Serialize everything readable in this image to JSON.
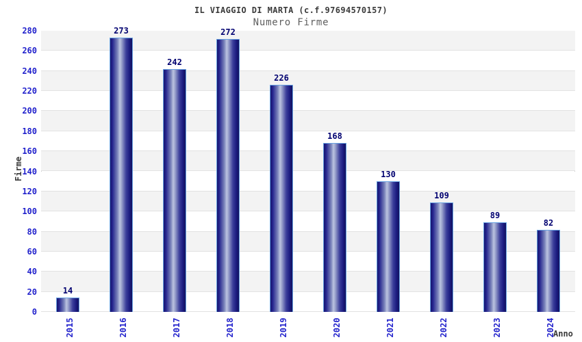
{
  "header": {
    "title": "IL VIAGGIO DI MARTA (c.f.97694570157)",
    "subtitle": "Numero Firme"
  },
  "chart_data": {
    "type": "bar",
    "title": "IL VIAGGIO DI MARTA (c.f.97694570157)",
    "subtitle": "Numero Firme",
    "categories": [
      "2015",
      "2016",
      "2017",
      "2018",
      "2019",
      "2020",
      "2021",
      "2022",
      "2023",
      "2024"
    ],
    "values": [
      14,
      273,
      242,
      272,
      226,
      168,
      130,
      109,
      89,
      82
    ],
    "xlabel": "Anno",
    "ylabel": "Firme",
    "ylim": [
      0,
      280
    ],
    "ytick_step": 20,
    "yticks": [
      0,
      20,
      40,
      60,
      80,
      100,
      120,
      140,
      160,
      180,
      200,
      220,
      240,
      260,
      280
    ],
    "grid": "horizontal-bands-alternating",
    "legend": "none",
    "colors": {
      "tick_label_blue": "#2222cc",
      "value_label_navy": "#000070",
      "title_color": "#3a3a3a",
      "subtitle_color": "#5f5f5f",
      "axis_label_color": "#3a3a3a",
      "bar_edge_dark": "#16166e",
      "bar_center_light": "#bcc4e0",
      "bar_border_lightblue": "#68a2e2",
      "band_gray": "#f3f3f3",
      "plot_border": "#cccccc"
    }
  }
}
